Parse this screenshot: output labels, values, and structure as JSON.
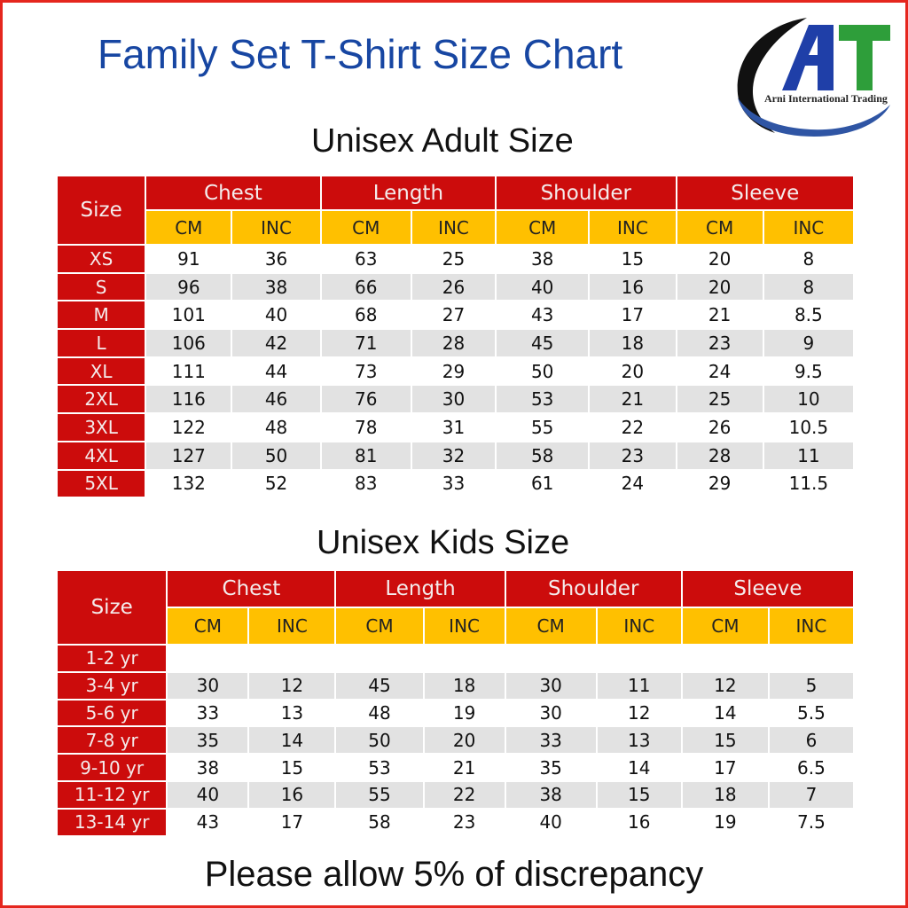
{
  "title": "Family Set T-Shirt Size Chart",
  "logo": {
    "mark": "AIT",
    "caption": "Arni International Trading"
  },
  "colors": {
    "header_red": "#cc0c0c",
    "unit_yellow": "#ffc000",
    "title_blue": "#1746a2",
    "row_shade": "#e2e2e2",
    "border_red": "#e5261e"
  },
  "adult": {
    "heading": "Unisex Adult Size",
    "size_header": "Size",
    "groups": [
      "Chest",
      "Length",
      "Shoulder",
      "Sleeve"
    ],
    "units": [
      "CM",
      "INC",
      "CM",
      "INC",
      "CM",
      "INC",
      "CM",
      "INC"
    ],
    "rows": [
      {
        "size": "XS",
        "values": [
          "91",
          "36",
          "63",
          "25",
          "38",
          "15",
          "20",
          "8"
        ]
      },
      {
        "size": "S",
        "values": [
          "96",
          "38",
          "66",
          "26",
          "40",
          "16",
          "20",
          "8"
        ]
      },
      {
        "size": "M",
        "values": [
          "101",
          "40",
          "68",
          "27",
          "43",
          "17",
          "21",
          "8.5"
        ]
      },
      {
        "size": "L",
        "values": [
          "106",
          "42",
          "71",
          "28",
          "45",
          "18",
          "23",
          "9"
        ]
      },
      {
        "size": "XL",
        "values": [
          "111",
          "44",
          "73",
          "29",
          "50",
          "20",
          "24",
          "9.5"
        ]
      },
      {
        "size": "2XL",
        "values": [
          "116",
          "46",
          "76",
          "30",
          "53",
          "21",
          "25",
          "10"
        ]
      },
      {
        "size": "3XL",
        "values": [
          "122",
          "48",
          "78",
          "31",
          "55",
          "22",
          "26",
          "10.5"
        ]
      },
      {
        "size": "4XL",
        "values": [
          "127",
          "50",
          "81",
          "32",
          "58",
          "23",
          "28",
          "11"
        ]
      },
      {
        "size": "5XL",
        "values": [
          "132",
          "52",
          "83",
          "33",
          "61",
          "24",
          "29",
          "11.5"
        ]
      }
    ]
  },
  "kids": {
    "heading": "Unisex Kids Size",
    "size_header": "Size",
    "groups": [
      "Chest",
      "Length",
      "Shoulder",
      "Sleeve"
    ],
    "units": [
      "CM",
      "INC",
      "CM",
      "INC",
      "CM",
      "INC",
      "CM",
      "INC"
    ],
    "rows": [
      {
        "size": "1-2 yr",
        "values": [
          "",
          "",
          "",
          "",
          "",
          "",
          "",
          ""
        ]
      },
      {
        "size": "3-4 yr",
        "values": [
          "30",
          "12",
          "45",
          "18",
          "30",
          "11",
          "12",
          "5"
        ]
      },
      {
        "size": "5-6 yr",
        "values": [
          "33",
          "13",
          "48",
          "19",
          "30",
          "12",
          "14",
          "5.5"
        ]
      },
      {
        "size": "7-8 yr",
        "values": [
          "35",
          "14",
          "50",
          "20",
          "33",
          "13",
          "15",
          "6"
        ]
      },
      {
        "size": "9-10 yr",
        "values": [
          "38",
          "15",
          "53",
          "21",
          "35",
          "14",
          "17",
          "6.5"
        ]
      },
      {
        "size": "11-12 yr",
        "values": [
          "40",
          "16",
          "55",
          "22",
          "38",
          "15",
          "18",
          "7"
        ]
      },
      {
        "size": "13-14 yr",
        "values": [
          "43",
          "17",
          "58",
          "23",
          "40",
          "16",
          "19",
          "7.5"
        ]
      }
    ]
  },
  "footer": "Please allow 5% of discrepancy"
}
